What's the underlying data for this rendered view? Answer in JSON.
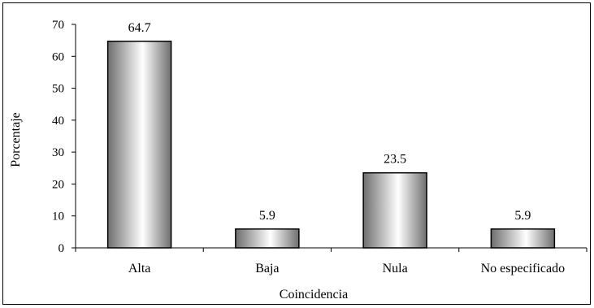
{
  "chart_data": {
    "type": "bar",
    "title": "",
    "xlabel": "Coincidencia",
    "ylabel": "Porcentaje",
    "categories": [
      "Alta",
      "Baja",
      "Nula",
      "No especificado"
    ],
    "values": [
      64.7,
      5.9,
      23.5,
      5.9
    ],
    "data_labels": [
      "64.7",
      "5.9",
      "23.5",
      "5.9"
    ],
    "ylim": [
      0,
      70
    ],
    "yticks": [
      0,
      10,
      20,
      30,
      40,
      50,
      60,
      70
    ],
    "grid": false,
    "legend": "none",
    "colors": {
      "bar_dark": "#6e6e6e",
      "bar_light": "#ffffff",
      "bar_stroke": "#000000",
      "axis": "#000000"
    }
  }
}
